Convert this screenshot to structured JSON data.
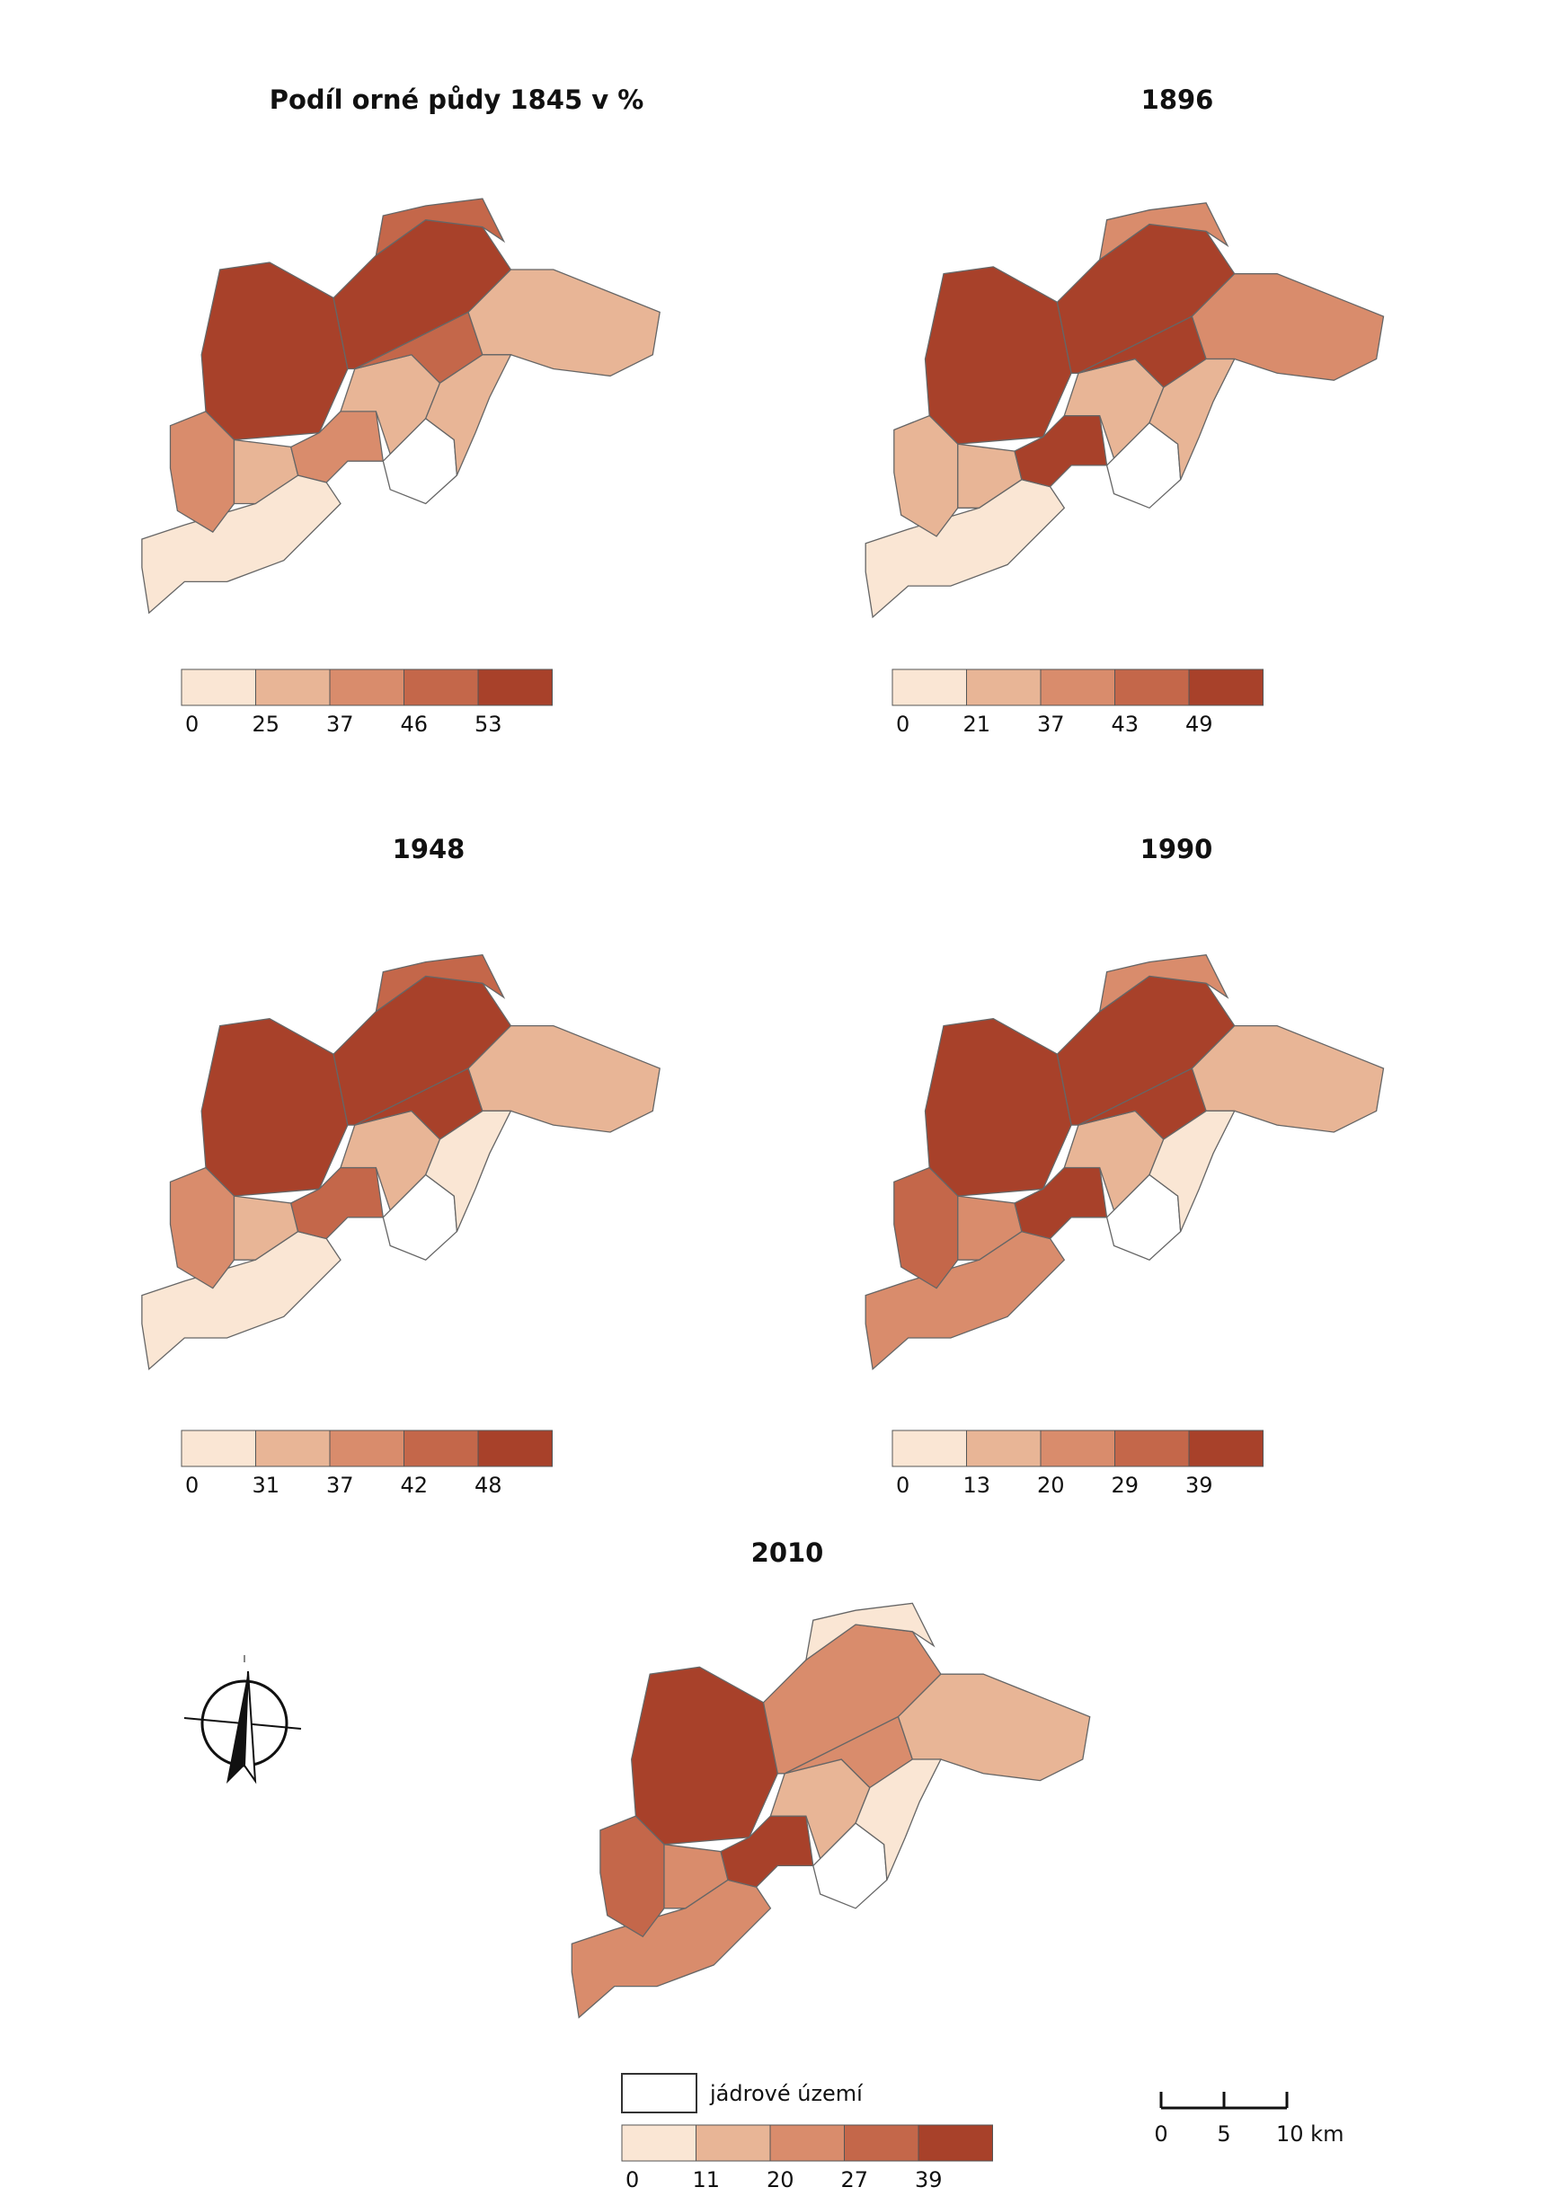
{
  "maps": [
    {
      "title": "Podíl orné půdy 1845 v %",
      "legend": [
        0,
        25,
        37,
        46,
        53
      ]
    },
    {
      "title": "1896",
      "legend": [
        0,
        21,
        37,
        43,
        49
      ]
    },
    {
      "title": "1948",
      "legend": [
        0,
        31,
        37,
        42,
        48
      ]
    },
    {
      "title": "1990",
      "legend": [
        0,
        13,
        20,
        29,
        39
      ]
    },
    {
      "title": "2010",
      "legend": [
        0,
        11,
        20,
        27,
        39
      ]
    }
  ],
  "legend_colors": [
    "#fae6d4",
    "#e8b596",
    "#d98c6c",
    "#c4674a",
    "#a8412a"
  ],
  "core_label": "jádrové území",
  "scale_labels": [
    "0",
    "5",
    "10 km"
  ]
}
